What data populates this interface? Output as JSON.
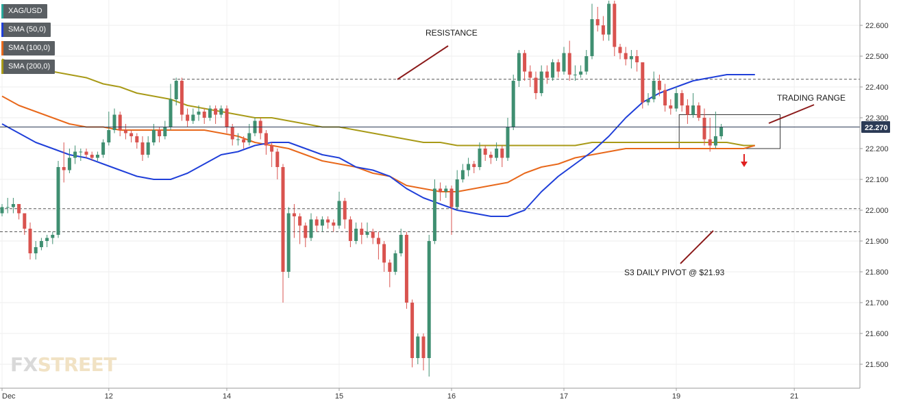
{
  "legend": [
    {
      "label": "XAG/USD",
      "color": "#26a69a"
    },
    {
      "label": "SMA (50,0)",
      "color": "#1f3fd9"
    },
    {
      "label": "SMA (100,0)",
      "color": "#e8681b"
    },
    {
      "label": "SMA (200,0)",
      "color": "#a89a17"
    }
  ],
  "watermark": {
    "part1": "FX",
    "part2": "STREET"
  },
  "annotations": {
    "resistance": "RESISTANCE",
    "trading_range": "TRADING RANGE",
    "pivot": "S3 DAILY PIVOT @ $21.93"
  },
  "price_label": "22.270",
  "colors": {
    "up": "#3f8f71",
    "down": "#d9534f",
    "sma50": "#1f3fd9",
    "sma100": "#e8681b",
    "sma200": "#a89a17",
    "annotation_line": "#8b1a1a",
    "arrow": "#e02020",
    "price_tag": "#2b3a55"
  },
  "chart_data": {
    "type": "candlestick",
    "symbol": "XAG/USD",
    "y_ticks": [
      "22.600",
      "22.500",
      "22.400",
      "22.300",
      "22.200",
      "22.100",
      "22.000",
      "21.900",
      "21.800",
      "21.700",
      "21.600",
      "21.500"
    ],
    "ylim": [
      21.44,
      22.67
    ],
    "x_ticks": [
      {
        "label": "Dec",
        "bar": 0
      },
      {
        "label": "12",
        "bar": 19
      },
      {
        "label": "14",
        "bar": 40
      },
      {
        "label": "15",
        "bar": 60
      },
      {
        "label": "16",
        "bar": 80
      },
      {
        "label": "17",
        "bar": 100
      },
      {
        "label": "19",
        "bar": 120
      },
      {
        "label": "21",
        "bar": 141
      }
    ],
    "last_price": 22.27,
    "levels": {
      "resistance": 22.425,
      "support": 22.005,
      "s3_pivot": 21.93
    },
    "trading_range": {
      "from_bar": 121,
      "to_bar": 138,
      "low": 22.2,
      "high": 22.31
    },
    "candles": [
      [
        21.99,
        22.01,
        21.98,
        22.02
      ],
      [
        22.01,
        22.01,
        21.99,
        22.04
      ],
      [
        22.01,
        22.02,
        21.99,
        22.04
      ],
      [
        22.02,
        21.99,
        21.97,
        22.02
      ],
      [
        21.99,
        21.94,
        21.92,
        21.99
      ],
      [
        21.94,
        21.86,
        21.84,
        21.96
      ],
      [
        21.86,
        21.88,
        21.84,
        21.9
      ],
      [
        21.88,
        21.9,
        21.87,
        21.91
      ],
      [
        21.9,
        21.91,
        21.88,
        21.92
      ],
      [
        21.91,
        21.92,
        21.89,
        21.93
      ],
      [
        21.92,
        22.14,
        21.91,
        22.16
      ],
      [
        22.14,
        22.13,
        22.09,
        22.22
      ],
      [
        22.13,
        22.17,
        22.12,
        22.2
      ],
      [
        22.17,
        22.19,
        22.15,
        22.21
      ],
      [
        22.19,
        22.19,
        22.16,
        22.2
      ],
      [
        22.19,
        22.18,
        22.17,
        22.2
      ],
      [
        22.18,
        22.17,
        22.16,
        22.19
      ],
      [
        22.17,
        22.18,
        22.16,
        22.19
      ],
      [
        22.18,
        22.22,
        22.17,
        22.23
      ],
      [
        22.22,
        22.26,
        22.21,
        22.32
      ],
      [
        22.26,
        22.31,
        22.25,
        22.33
      ],
      [
        22.31,
        22.26,
        22.24,
        22.32
      ],
      [
        22.26,
        22.25,
        22.23,
        22.28
      ],
      [
        22.25,
        22.24,
        22.22,
        22.26
      ],
      [
        22.24,
        22.22,
        22.2,
        22.25
      ],
      [
        22.22,
        22.18,
        22.16,
        22.24
      ],
      [
        22.18,
        22.22,
        22.17,
        22.24
      ],
      [
        22.22,
        22.26,
        22.21,
        22.28
      ],
      [
        22.26,
        22.24,
        22.22,
        22.27
      ],
      [
        22.24,
        22.27,
        22.23,
        22.29
      ],
      [
        22.27,
        22.36,
        22.26,
        22.41
      ],
      [
        22.36,
        22.42,
        22.34,
        22.43
      ],
      [
        22.42,
        22.31,
        22.29,
        22.43
      ],
      [
        22.31,
        22.29,
        22.27,
        22.33
      ],
      [
        22.29,
        22.31,
        22.28,
        22.33
      ],
      [
        22.31,
        22.32,
        22.29,
        22.34
      ],
      [
        22.32,
        22.3,
        22.28,
        22.33
      ],
      [
        22.3,
        22.33,
        22.29,
        22.34
      ],
      [
        22.33,
        22.31,
        22.28,
        22.34
      ],
      [
        22.31,
        22.33,
        22.3,
        22.34
      ],
      [
        22.33,
        22.27,
        22.25,
        22.34
      ],
      [
        22.27,
        22.23,
        22.21,
        22.28
      ],
      [
        22.23,
        22.23,
        22.21,
        22.25
      ],
      [
        22.23,
        22.22,
        22.2,
        22.24
      ],
      [
        22.22,
        22.25,
        22.21,
        22.28
      ],
      [
        22.25,
        22.29,
        22.24,
        22.3
      ],
      [
        22.29,
        22.25,
        22.23,
        22.3
      ],
      [
        22.25,
        22.21,
        22.18,
        22.26
      ],
      [
        22.21,
        22.19,
        22.14,
        22.22
      ],
      [
        22.19,
        22.14,
        22.1,
        22.2
      ],
      [
        22.14,
        21.8,
        21.7,
        22.15
      ],
      [
        21.8,
        21.99,
        21.78,
        22.01
      ],
      [
        21.99,
        21.98,
        21.91,
        22.02
      ],
      [
        21.98,
        21.95,
        21.89,
        21.99
      ],
      [
        21.95,
        21.91,
        21.88,
        21.96
      ],
      [
        21.91,
        21.97,
        21.9,
        21.99
      ],
      [
        21.97,
        21.95,
        21.93,
        21.98
      ],
      [
        21.95,
        21.97,
        21.93,
        21.98
      ],
      [
        21.97,
        21.96,
        21.94,
        21.98
      ],
      [
        21.96,
        21.95,
        21.93,
        21.97
      ],
      [
        21.95,
        22.03,
        21.94,
        22.06
      ],
      [
        22.03,
        21.97,
        21.94,
        22.04
      ],
      [
        21.97,
        21.9,
        21.88,
        21.98
      ],
      [
        21.9,
        21.94,
        21.89,
        21.96
      ],
      [
        21.94,
        21.92,
        21.89,
        21.96
      ],
      [
        21.92,
        21.93,
        21.91,
        21.96
      ],
      [
        21.93,
        21.91,
        21.89,
        21.94
      ],
      [
        21.91,
        21.89,
        21.84,
        21.93
      ],
      [
        21.89,
        21.83,
        21.8,
        21.9
      ],
      [
        21.83,
        21.8,
        21.75,
        21.84
      ],
      [
        21.8,
        21.86,
        21.79,
        21.87
      ],
      [
        21.86,
        21.92,
        21.85,
        21.94
      ],
      [
        21.92,
        21.7,
        21.68,
        21.93
      ],
      [
        21.7,
        21.52,
        21.49,
        21.71
      ],
      [
        21.52,
        21.59,
        21.5,
        21.6
      ],
      [
        21.59,
        21.52,
        21.48,
        21.6
      ],
      [
        21.52,
        21.9,
        21.46,
        21.92
      ],
      [
        21.9,
        22.07,
        21.89,
        22.1
      ],
      [
        22.07,
        22.06,
        22.03,
        22.09
      ],
      [
        22.06,
        22.07,
        22.04,
        22.08
      ],
      [
        22.07,
        22.01,
        21.92,
        22.08
      ],
      [
        22.01,
        22.1,
        22.0,
        22.13
      ],
      [
        22.1,
        22.13,
        22.09,
        22.15
      ],
      [
        22.13,
        22.15,
        22.11,
        22.17
      ],
      [
        22.15,
        22.14,
        22.12,
        22.16
      ],
      [
        22.14,
        22.2,
        22.13,
        22.22
      ],
      [
        22.2,
        22.18,
        22.16,
        22.21
      ],
      [
        22.18,
        22.17,
        22.15,
        22.19
      ],
      [
        22.17,
        22.2,
        22.16,
        22.22
      ],
      [
        22.2,
        22.17,
        22.14,
        22.21
      ],
      [
        22.17,
        22.27,
        22.16,
        22.3
      ],
      [
        22.27,
        22.42,
        22.26,
        22.44
      ],
      [
        22.42,
        22.51,
        22.4,
        22.52
      ],
      [
        22.51,
        22.45,
        22.42,
        22.52
      ],
      [
        22.45,
        22.43,
        22.4,
        22.47
      ],
      [
        22.43,
        22.38,
        22.36,
        22.45
      ],
      [
        22.38,
        22.45,
        22.37,
        22.47
      ],
      [
        22.45,
        22.43,
        22.41,
        22.47
      ],
      [
        22.43,
        22.48,
        22.42,
        22.49
      ],
      [
        22.48,
        22.45,
        22.43,
        22.49
      ],
      [
        22.45,
        22.51,
        22.44,
        22.53
      ],
      [
        22.51,
        22.44,
        22.42,
        22.55
      ],
      [
        22.44,
        22.44,
        22.42,
        22.47
      ],
      [
        22.44,
        22.45,
        22.43,
        22.47
      ],
      [
        22.45,
        22.5,
        22.44,
        22.52
      ],
      [
        22.5,
        22.62,
        22.49,
        22.67
      ],
      [
        22.62,
        22.6,
        22.58,
        22.66
      ],
      [
        22.6,
        22.57,
        22.55,
        22.63
      ],
      [
        22.57,
        22.67,
        22.55,
        22.68
      ],
      [
        22.67,
        22.53,
        22.5,
        22.68
      ],
      [
        22.53,
        22.51,
        22.49,
        22.54
      ],
      [
        22.51,
        22.49,
        22.47,
        22.53
      ],
      [
        22.49,
        22.5,
        22.46,
        22.52
      ],
      [
        22.5,
        22.48,
        22.45,
        22.52
      ],
      [
        22.48,
        22.35,
        22.33,
        22.48
      ],
      [
        22.35,
        22.36,
        22.34,
        22.38
      ],
      [
        22.36,
        22.42,
        22.35,
        22.45
      ],
      [
        22.42,
        22.39,
        22.37,
        22.44
      ],
      [
        22.39,
        22.34,
        22.32,
        22.41
      ],
      [
        22.34,
        22.33,
        22.31,
        22.36
      ],
      [
        22.33,
        22.38,
        22.32,
        22.4
      ],
      [
        22.38,
        22.34,
        22.32,
        22.39
      ],
      [
        22.34,
        22.31,
        22.28,
        22.36
      ],
      [
        22.31,
        22.34,
        22.3,
        22.38
      ],
      [
        22.34,
        22.3,
        22.29,
        22.35
      ],
      [
        22.3,
        22.23,
        22.21,
        22.33
      ],
      [
        22.23,
        22.21,
        22.19,
        22.3
      ],
      [
        22.21,
        22.24,
        22.2,
        22.32
      ],
      [
        22.24,
        22.27,
        22.23,
        22.28
      ]
    ],
    "sma_50": [
      [
        0,
        22.28
      ],
      [
        3,
        22.25
      ],
      [
        6,
        22.22
      ],
      [
        9,
        22.2
      ],
      [
        12,
        22.18
      ],
      [
        15,
        22.17
      ],
      [
        18,
        22.15
      ],
      [
        21,
        22.13
      ],
      [
        24,
        22.11
      ],
      [
        27,
        22.1
      ],
      [
        30,
        22.1
      ],
      [
        33,
        22.12
      ],
      [
        36,
        22.15
      ],
      [
        39,
        22.18
      ],
      [
        42,
        22.19
      ],
      [
        45,
        22.21
      ],
      [
        48,
        22.22
      ],
      [
        51,
        22.22
      ],
      [
        54,
        22.2
      ],
      [
        57,
        22.18
      ],
      [
        60,
        22.17
      ],
      [
        63,
        22.14
      ],
      [
        66,
        22.13
      ],
      [
        69,
        22.11
      ],
      [
        72,
        22.07
      ],
      [
        75,
        22.04
      ],
      [
        78,
        22.02
      ],
      [
        81,
        22.0
      ],
      [
        84,
        21.99
      ],
      [
        87,
        21.98
      ],
      [
        90,
        21.98
      ],
      [
        93,
        22.0
      ],
      [
        96,
        22.06
      ],
      [
        99,
        22.11
      ],
      [
        102,
        22.15
      ],
      [
        105,
        22.19
      ],
      [
        108,
        22.24
      ],
      [
        111,
        22.3
      ],
      [
        114,
        22.35
      ],
      [
        117,
        22.38
      ],
      [
        120,
        22.4
      ],
      [
        123,
        22.42
      ],
      [
        126,
        22.43
      ],
      [
        129,
        22.44
      ],
      [
        132,
        22.44
      ],
      [
        134,
        22.44
      ]
    ],
    "sma_100": [
      [
        0,
        22.37
      ],
      [
        3,
        22.34
      ],
      [
        6,
        22.32
      ],
      [
        9,
        22.3
      ],
      [
        12,
        22.28
      ],
      [
        15,
        22.27
      ],
      [
        18,
        22.27
      ],
      [
        21,
        22.26
      ],
      [
        24,
        22.26
      ],
      [
        27,
        22.26
      ],
      [
        30,
        22.26
      ],
      [
        33,
        22.26
      ],
      [
        36,
        22.26
      ],
      [
        39,
        22.25
      ],
      [
        42,
        22.24
      ],
      [
        45,
        22.22
      ],
      [
        48,
        22.21
      ],
      [
        51,
        22.2
      ],
      [
        54,
        22.18
      ],
      [
        57,
        22.16
      ],
      [
        60,
        22.15
      ],
      [
        63,
        22.14
      ],
      [
        66,
        22.12
      ],
      [
        69,
        22.11
      ],
      [
        72,
        22.08
      ],
      [
        75,
        22.07
      ],
      [
        78,
        22.06
      ],
      [
        81,
        22.06
      ],
      [
        84,
        22.07
      ],
      [
        87,
        22.08
      ],
      [
        90,
        22.09
      ],
      [
        93,
        22.12
      ],
      [
        96,
        22.14
      ],
      [
        99,
        22.15
      ],
      [
        102,
        22.17
      ],
      [
        105,
        22.18
      ],
      [
        108,
        22.19
      ],
      [
        111,
        22.2
      ],
      [
        114,
        22.2
      ],
      [
        117,
        22.2
      ],
      [
        120,
        22.2
      ],
      [
        123,
        22.2
      ],
      [
        126,
        22.2
      ],
      [
        129,
        22.2
      ],
      [
        132,
        22.2
      ],
      [
        134,
        22.21
      ]
    ],
    "sma_200": [
      [
        0,
        22.49
      ],
      [
        3,
        22.47
      ],
      [
        6,
        22.46
      ],
      [
        9,
        22.45
      ],
      [
        12,
        22.44
      ],
      [
        15,
        22.43
      ],
      [
        18,
        22.41
      ],
      [
        21,
        22.4
      ],
      [
        24,
        22.38
      ],
      [
        27,
        22.37
      ],
      [
        30,
        22.36
      ],
      [
        33,
        22.34
      ],
      [
        36,
        22.33
      ],
      [
        39,
        22.32
      ],
      [
        42,
        22.31
      ],
      [
        45,
        22.3
      ],
      [
        48,
        22.3
      ],
      [
        51,
        22.29
      ],
      [
        54,
        22.28
      ],
      [
        57,
        22.27
      ],
      [
        60,
        22.27
      ],
      [
        63,
        22.26
      ],
      [
        66,
        22.25
      ],
      [
        69,
        22.24
      ],
      [
        72,
        22.23
      ],
      [
        75,
        22.22
      ],
      [
        78,
        22.22
      ],
      [
        81,
        22.21
      ],
      [
        84,
        22.21
      ],
      [
        87,
        22.21
      ],
      [
        90,
        22.21
      ],
      [
        93,
        22.21
      ],
      [
        96,
        22.21
      ],
      [
        99,
        22.21
      ],
      [
        102,
        22.21
      ],
      [
        105,
        22.22
      ],
      [
        108,
        22.22
      ],
      [
        111,
        22.22
      ],
      [
        114,
        22.22
      ],
      [
        117,
        22.22
      ],
      [
        120,
        22.22
      ],
      [
        123,
        22.22
      ],
      [
        126,
        22.22
      ],
      [
        129,
        22.22
      ],
      [
        132,
        22.21
      ],
      [
        134,
        22.21
      ]
    ]
  }
}
